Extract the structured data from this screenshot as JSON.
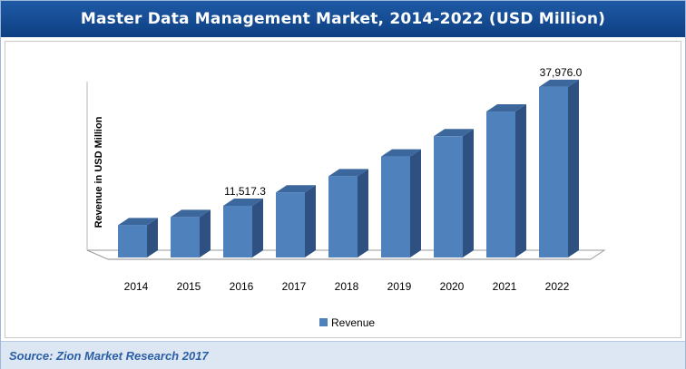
{
  "title": "Master Data Management Market, 2014-2022 (USD Million)",
  "source": "Source: Zion Market Research 2017",
  "colors": {
    "bar_front": "#4f81bd",
    "bar_side": "#2f5182",
    "bar_top": "#3c679c",
    "title_bg": "#0d3f82"
  },
  "chart_data": {
    "type": "bar",
    "categories": [
      "2014",
      "2015",
      "2016",
      "2017",
      "2018",
      "2019",
      "2020",
      "2021",
      "2022"
    ],
    "series": [
      {
        "name": "Revenue",
        "values": [
          7200,
          9000,
          11517.3,
          14500,
          18100,
          22500,
          27000,
          32500,
          37976.0
        ]
      }
    ],
    "data_labels": [
      {
        "category": "2016",
        "text": "11,517.3"
      },
      {
        "category": "2022",
        "text": "37,976.0"
      }
    ],
    "xlabel": "",
    "ylabel": "Revenue in USD Million",
    "ylim": [
      0,
      42000
    ],
    "legend": "bottom-center",
    "grid": false
  }
}
